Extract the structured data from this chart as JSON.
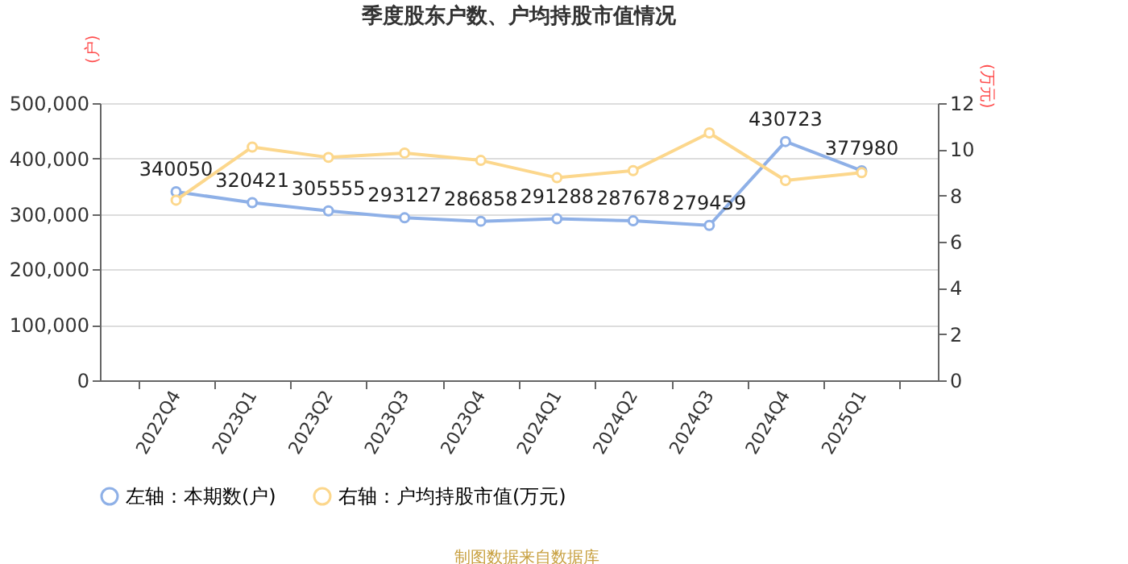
{
  "chart_data": {
    "type": "line",
    "title": "季度股东户数、户均持股市值情况",
    "ylabel": "(户)",
    "y2label": "(万元)",
    "categories": [
      "2022Q4",
      "2023Q1",
      "2023Q2",
      "2023Q3",
      "2023Q4",
      "2024Q1",
      "2024Q2",
      "2024Q3",
      "2024Q4",
      "2025Q1"
    ],
    "series": [
      {
        "name": "左轴：本期数(户)",
        "color": "#8eb0e7",
        "values": [
          340050,
          320421,
          305555,
          293127,
          286858,
          291288,
          287678,
          279459,
          430723,
          377980
        ],
        "value_labels": [
          "340050",
          "320421",
          "305555",
          "293127",
          "286858",
          "291288",
          "287678",
          "279459",
          "430723",
          "377980"
        ]
      },
      {
        "name": "右轴：户均持股市值(万元)",
        "color": "#fcd78c",
        "axis": "y2",
        "values": [
          7.8,
          10.1,
          9.65,
          9.84,
          9.52,
          8.77,
          9.08,
          10.71,
          8.65,
          8.99
        ]
      }
    ],
    "ylim": [
      0,
      500000
    ],
    "yticks": [
      {
        "value": 0,
        "label": "0"
      },
      {
        "value": 100000,
        "label": "100,000"
      },
      {
        "value": 200000,
        "label": "200,000"
      },
      {
        "value": 300000,
        "label": "300,000"
      },
      {
        "value": 400000,
        "label": "400,000"
      },
      {
        "value": 500000,
        "label": "500,000"
      }
    ],
    "y2lim": [
      0,
      12
    ],
    "y2ticks": [
      0,
      2,
      4,
      6,
      8,
      10,
      12
    ],
    "grid": "y",
    "legend": "bottom",
    "marker": "circle",
    "line_style": "solid",
    "annotations": [
      "制图数据来自数据库"
    ]
  }
}
